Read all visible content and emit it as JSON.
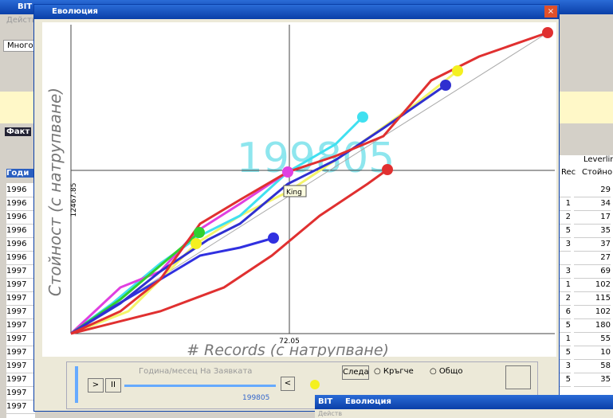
{
  "background_window": {
    "title": "BIT",
    "menu": "Действ",
    "tab": "Много",
    "section": "Факт",
    "column_header": "Годи",
    "years": [
      "1996",
      "1996",
      "1996",
      "1996",
      "1996",
      "1996",
      "1997",
      "1997",
      "1997",
      "1997",
      "1997",
      "1997",
      "1997",
      "1997",
      "1997",
      "1997",
      "1997"
    ],
    "right_header": "Leverlin",
    "right_columns": [
      "Rec",
      "Стойно"
    ],
    "right_rows": [
      [
        "",
        "29"
      ],
      [
        "1",
        "34"
      ],
      [
        "2",
        "17"
      ],
      [
        "5",
        "35"
      ],
      [
        "3",
        "37"
      ],
      [
        "",
        "27"
      ],
      [
        "3",
        "69"
      ],
      [
        "1",
        "102"
      ],
      [
        "2",
        "115"
      ],
      [
        "6",
        "102"
      ],
      [
        "5",
        "180"
      ],
      [
        "1",
        "55"
      ],
      [
        "5",
        "10"
      ],
      [
        "3",
        "58"
      ],
      [
        "5",
        "35"
      ]
    ]
  },
  "dialog": {
    "title": "Еволюция",
    "y_axis_label": "Стойност (с натрупване)",
    "y_cross_value": "12467.85",
    "x_axis_label": "# Records (с натрупване)",
    "x_cross_value": "72.05",
    "watermark": "199805",
    "tooltip": "King",
    "slider_label": "Година/месец На Заявката",
    "slider_value": "199805",
    "buttons": {
      "back": "<",
      "play": ">",
      "pause": "II",
      "trace": "Следа"
    },
    "options": [
      "Кръгче",
      "Общо"
    ]
  },
  "second_window": {
    "title": "BIT",
    "dialog_title": "Еволюция",
    "menu": "Действ"
  }
}
